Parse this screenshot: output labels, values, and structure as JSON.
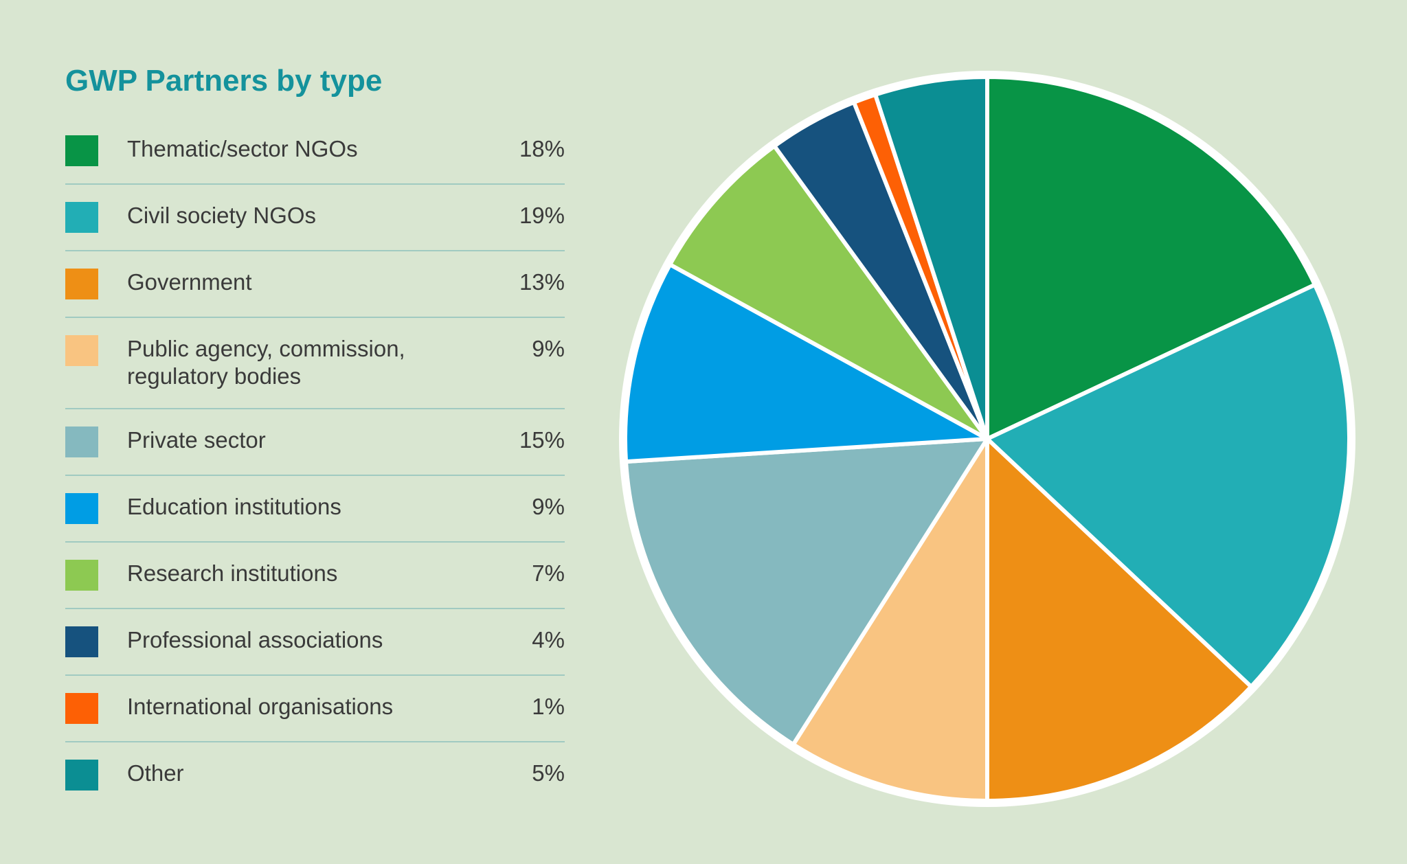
{
  "title": "GWP Partners by type",
  "colors": {
    "background": "#d9e6d1",
    "title_text": "#14929c",
    "body_text": "#3a3a3a",
    "legend_divider": "#a0cac1",
    "pie_outline": "#ffffff"
  },
  "chart_data": {
    "type": "pie",
    "title": "GWP Partners by type",
    "start_angle": "12-o'clock",
    "direction": "clockwise",
    "legend_position": "left",
    "slices": [
      {
        "label": "Thematic/sector NGOs",
        "value_pct": 18,
        "display": "18%",
        "color": "#089446"
      },
      {
        "label": "Civil society NGOs",
        "value_pct": 19,
        "display": "19%",
        "color": "#22aeb5"
      },
      {
        "label": "Government",
        "value_pct": 13,
        "display": "13%",
        "color": "#ee8f15"
      },
      {
        "label": "Public agency, commission, regulatory bodies",
        "value_pct": 9,
        "display": "9%",
        "color": "#f9c481"
      },
      {
        "label": "Private sector",
        "value_pct": 15,
        "display": "15%",
        "color": "#85b9bf"
      },
      {
        "label": "Education institutions",
        "value_pct": 9,
        "display": "9%",
        "color": "#009de4"
      },
      {
        "label": "Research institutions",
        "value_pct": 7,
        "display": "7%",
        "color": "#8dc952"
      },
      {
        "label": "Professional associations",
        "value_pct": 4,
        "display": "4%",
        "color": "#16527e"
      },
      {
        "label": "International organisations",
        "value_pct": 1,
        "display": "1%",
        "color": "#fd6005"
      },
      {
        "label": "Other",
        "value_pct": 5,
        "display": "5%",
        "color": "#0b8e93"
      }
    ]
  }
}
